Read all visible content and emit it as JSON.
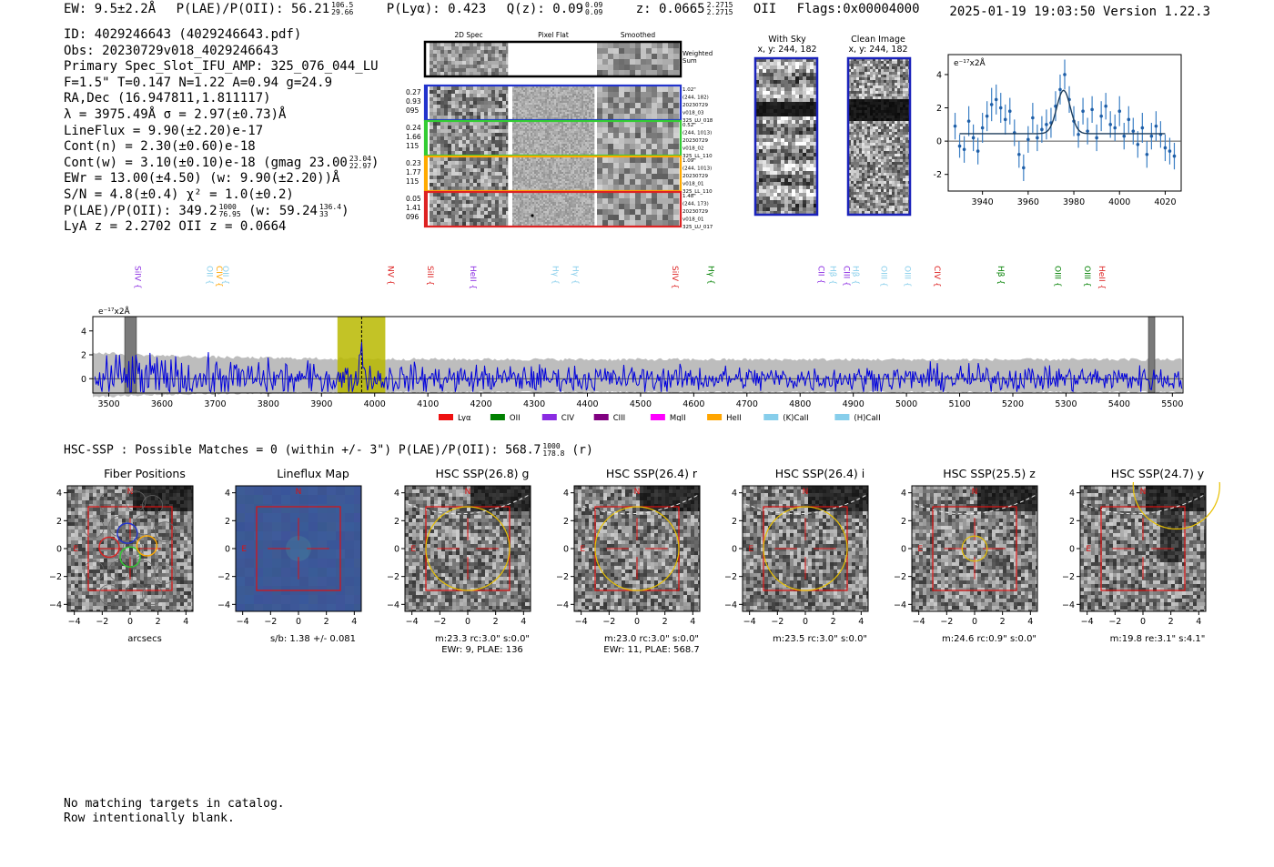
{
  "header": {
    "ew": "EW: 9.5±2.2Å",
    "plae_label": "P(LAE)/P(OII): 56.21",
    "plae_hi": "106.5",
    "plae_lo": "29.66",
    "plya": "P(Lyα): 0.423",
    "q_label": "Q(z): 0.09",
    "q_hi": "0.09",
    "q_lo": "0.09",
    "z_label": "z: 0.0665",
    "z_hi": "2.2715",
    "z_lo": "2.2715",
    "z_line": "OII",
    "flags": "Flags:0x00004000",
    "datestamp": "2025-01-19 19:03:50  Version 1.22.3"
  },
  "info": {
    "id": "ID: 4029246643 (4029246643.pdf)",
    "obs": "Obs: 20230729v018_4029246643",
    "primary": "Primary Spec_Slot_IFU_AMP: 325_076_044_LU",
    "fit": "F=1.5\"  T=0.147  N=1.22  A=0.94  g=24.9",
    "radec": "RA,Dec (16.947811,1.811117)",
    "lambda": "λ = 3975.49Å  σ = 2.97(±0.73)Å",
    "lineflux": "LineFlux = 9.90(±2.20)e-17",
    "contn": "Cont(n) = 2.30(±0.60)e-18",
    "contw": "Cont(w) = 3.10(±0.10)e-18 (gmag 23.00",
    "contw_hi": "23.04",
    "contw_lo": "22.97",
    "contw_end": ")",
    "ewr": "EWr = 13.00(±4.50) (w: 9.90(±2.20))Å",
    "sn": "S/N = 4.8(±0.4)  χ² = 1.0(±0.2)",
    "plae": "P(LAE)/P(OII): 349.2",
    "plae_hi": "1000",
    "plae_lo": "76.95",
    "plae_w": "(w: 59.24",
    "plae_w_hi": "136.4",
    "plae_w_lo": "33",
    "plae_w_end": ")",
    "lya": "LyA z = 2.2702  OII z = 0.0664"
  },
  "spec2d": {
    "headers": [
      "2D Spec",
      "Pixel Flat",
      "Smoothed"
    ],
    "weighted_label": "Weighted Sum",
    "colors": [
      "#000000",
      "#2233cc",
      "#33cc33",
      "#ffaa00",
      "#dd2222"
    ],
    "rows": [
      {
        "stats": [
          "0.27",
          "0.93",
          "095"
        ],
        "meta": [
          "1.02\"",
          "(244, 182)",
          "20230729",
          "v018_03",
          "325_LU_018"
        ],
        "color": "#2233cc"
      },
      {
        "stats": [
          "0.24",
          "1.66",
          "115"
        ],
        "meta": [
          "0.52\"",
          "(244, 1013)",
          "20230729",
          "v018_02",
          "325_LL_110"
        ],
        "color": "#33cc33"
      },
      {
        "stats": [
          "0.23",
          "1.77",
          "115"
        ],
        "meta": [
          "1.09\"",
          "(244, 1013)",
          "20230729",
          "v018_01",
          "325_LL_110"
        ],
        "color": "#ffaa00"
      },
      {
        "stats": [
          "0.05",
          "1.41",
          "096"
        ],
        "meta": [
          "1.48\"",
          "(244, 173)",
          "20230729",
          "v018_01",
          "325_LU_017"
        ],
        "color": "#dd2222"
      }
    ]
  },
  "sky_panels": [
    {
      "title": "With Sky",
      "coords": "x, y: 244, 182"
    },
    {
      "title": "Clean Image",
      "coords": "x, y: 244, 182"
    }
  ],
  "zoom_plot": {
    "unit": "e⁻¹⁷x2Å",
    "xlim": [
      3925,
      4027
    ],
    "ylim": [
      -3,
      5.2
    ],
    "xticks": [
      3940,
      3960,
      3980,
      4000,
      4020
    ],
    "yticks": [
      -2,
      0,
      2,
      4
    ],
    "points": [
      {
        "x": 3928,
        "y": 0.9,
        "e": 0.8
      },
      {
        "x": 3930,
        "y": -0.3,
        "e": 0.7
      },
      {
        "x": 3932,
        "y": -0.5,
        "e": 0.8
      },
      {
        "x": 3934,
        "y": 1.2,
        "e": 0.9
      },
      {
        "x": 3936,
        "y": 0.2,
        "e": 0.8
      },
      {
        "x": 3938,
        "y": -0.6,
        "e": 0.8
      },
      {
        "x": 3940,
        "y": 0.8,
        "e": 0.9
      },
      {
        "x": 3942,
        "y": 1.5,
        "e": 0.9
      },
      {
        "x": 3944,
        "y": 2.2,
        "e": 1.0
      },
      {
        "x": 3946,
        "y": 2.5,
        "e": 0.9
      },
      {
        "x": 3948,
        "y": 2.0,
        "e": 0.9
      },
      {
        "x": 3950,
        "y": 1.3,
        "e": 0.9
      },
      {
        "x": 3952,
        "y": 1.8,
        "e": 0.8
      },
      {
        "x": 3954,
        "y": 0.5,
        "e": 0.8
      },
      {
        "x": 3956,
        "y": -0.8,
        "e": 0.8
      },
      {
        "x": 3958,
        "y": -1.6,
        "e": 0.8
      },
      {
        "x": 3960,
        "y": 0.1,
        "e": 0.8
      },
      {
        "x": 3962,
        "y": 1.4,
        "e": 0.9
      },
      {
        "x": 3964,
        "y": 0.2,
        "e": 0.8
      },
      {
        "x": 3966,
        "y": 0.7,
        "e": 0.8
      },
      {
        "x": 3968,
        "y": 1.0,
        "e": 0.9
      },
      {
        "x": 3970,
        "y": 1.1,
        "e": 0.9
      },
      {
        "x": 3972,
        "y": 2.1,
        "e": 0.9
      },
      {
        "x": 3974,
        "y": 3.1,
        "e": 0.9
      },
      {
        "x": 3976,
        "y": 4.0,
        "e": 0.9
      },
      {
        "x": 3978,
        "y": 2.5,
        "e": 0.8
      },
      {
        "x": 3980,
        "y": 1.2,
        "e": 0.9
      },
      {
        "x": 3982,
        "y": 0.4,
        "e": 0.8
      },
      {
        "x": 3984,
        "y": 1.8,
        "e": 0.8
      },
      {
        "x": 3986,
        "y": 0.6,
        "e": 0.8
      },
      {
        "x": 3988,
        "y": 1.9,
        "e": 0.8
      },
      {
        "x": 3990,
        "y": 0.2,
        "e": 0.8
      },
      {
        "x": 3992,
        "y": 1.5,
        "e": 0.9
      },
      {
        "x": 3994,
        "y": 2.1,
        "e": 0.8
      },
      {
        "x": 3996,
        "y": 1.0,
        "e": 0.8
      },
      {
        "x": 3998,
        "y": 0.8,
        "e": 0.8
      },
      {
        "x": 4000,
        "y": 1.8,
        "e": 0.9
      },
      {
        "x": 4002,
        "y": 0.3,
        "e": 0.8
      },
      {
        "x": 4004,
        "y": 1.3,
        "e": 0.8
      },
      {
        "x": 4006,
        "y": 0.6,
        "e": 0.8
      },
      {
        "x": 4008,
        "y": -0.2,
        "e": 0.8
      },
      {
        "x": 4010,
        "y": 0.8,
        "e": 0.9
      },
      {
        "x": 4012,
        "y": -0.8,
        "e": 0.8
      },
      {
        "x": 4014,
        "y": 0.3,
        "e": 0.8
      },
      {
        "x": 4016,
        "y": 0.9,
        "e": 0.9
      },
      {
        "x": 4018,
        "y": 0.4,
        "e": 0.8
      },
      {
        "x": 4020,
        "y": -0.4,
        "e": 0.8
      },
      {
        "x": 4022,
        "y": -0.6,
        "e": 0.8
      },
      {
        "x": 4024,
        "y": -0.9,
        "e": 0.8
      }
    ],
    "fit": {
      "center": 3975.5,
      "sigma": 2.97,
      "amp": 2.6,
      "cont": 0.45,
      "start": 3930,
      "end": 4020
    }
  },
  "full_spec": {
    "unit": "e⁻¹⁷x2Å",
    "xlim": [
      3470,
      5520
    ],
    "ylim": [
      -1.2,
      5.2
    ],
    "xticks": [
      3500,
      3600,
      3700,
      3800,
      3900,
      4000,
      4100,
      4200,
      4300,
      4400,
      4500,
      4600,
      4700,
      4800,
      4900,
      5000,
      5100,
      5200,
      5300,
      5400,
      5500
    ],
    "yticks": [
      0,
      2,
      4
    ],
    "highlight": [
      3930,
      4020
    ],
    "line_center": 3975.5,
    "masked": [
      [
        3530,
        3552
      ],
      [
        5455,
        5467
      ]
    ],
    "lines": [
      {
        "label": "SiIV",
        "x": 3555,
        "color": "#8a2be2",
        "row": 1
      },
      {
        "label": "OII",
        "x": 3690,
        "color": "#87ceeb",
        "row": 1
      },
      {
        "label": "CIV",
        "x": 3708,
        "color": "#ffa500",
        "row": 1
      },
      {
        "label": "OII",
        "x": 3720,
        "color": "#87ceeb",
        "row": 1
      },
      {
        "label": "NV",
        "x": 4030,
        "color": "#dd2222",
        "row": 1
      },
      {
        "label": "SiII",
        "x": 4105,
        "color": "#dd2222",
        "row": 1
      },
      {
        "label": "HeII",
        "x": 4185,
        "color": "#8a2be2",
        "row": 1
      },
      {
        "label": "Hγ",
        "x": 4340,
        "color": "#87ceeb",
        "row": 1
      },
      {
        "label": "Hγ",
        "x": 4378,
        "color": "#87ceeb",
        "row": 1
      },
      {
        "label": "SiIV",
        "x": 4565,
        "color": "#dd2222",
        "row": 1
      },
      {
        "label": "CIII",
        "x": 4630,
        "color": "#ffa500",
        "row": 0
      },
      {
        "label": "Hγ",
        "x": 4633,
        "color": "#008000",
        "row": 1
      },
      {
        "label": "CII",
        "x": 4840,
        "color": "#8a2be2",
        "row": 1
      },
      {
        "label": "Hβ",
        "x": 4862,
        "color": "#87ceeb",
        "row": 1
      },
      {
        "label": "CIII",
        "x": 4888,
        "color": "#8a2be2",
        "row": 1
      },
      {
        "label": "Hβ",
        "x": 4905,
        "color": "#87ceeb",
        "row": 1
      },
      {
        "label": "OIII",
        "x": 4958,
        "color": "#87ceeb",
        "row": 1
      },
      {
        "label": "OIII",
        "x": 5007,
        "color": "#87ceeb",
        "row": 0
      },
      {
        "label": "OIII",
        "x": 5002,
        "color": "#87ceeb",
        "row": 1
      },
      {
        "label": "OII",
        "x": 5050,
        "color": "#87ceeb",
        "row": 0
      },
      {
        "label": "CIV",
        "x": 5058,
        "color": "#dd2222",
        "row": 1
      },
      {
        "label": "Hβ",
        "x": 5178,
        "color": "#008000",
        "row": 1
      },
      {
        "label": "OII",
        "x": 5290,
        "color": "#ff00ff",
        "row": 0
      },
      {
        "label": "OIII",
        "x": 5285,
        "color": "#008000",
        "row": 1
      },
      {
        "label": "OIII",
        "x": 5340,
        "color": "#008000",
        "row": 1
      },
      {
        "label": "HeII",
        "x": 5368,
        "color": "#dd2222",
        "row": 1
      }
    ],
    "legend": [
      {
        "label": "Lyα",
        "color": "#ee1111"
      },
      {
        "label": "OII",
        "color": "#008000"
      },
      {
        "label": "CIV",
        "color": "#8a2be2"
      },
      {
        "label": "CIII",
        "color": "#800080"
      },
      {
        "label": "MgII",
        "color": "#ff00ff"
      },
      {
        "label": "HeII",
        "color": "#ffa500"
      },
      {
        "label": "(K)CaII",
        "color": "#87ceeb"
      },
      {
        "label": "(H)CaII",
        "color": "#87ceeb"
      }
    ]
  },
  "hsc": {
    "title": "HSC-SSP : Possible Matches = 0 (within +/- 3\")  P(LAE)/P(OII): 568.7",
    "title_hi": "1000",
    "title_lo": "178.8",
    "title_end": "(r)",
    "axis_ticks": [
      -4,
      -2,
      0,
      2,
      4
    ],
    "north_label": "N",
    "east_label": "E",
    "panels": [
      {
        "title": "Fiber Positions",
        "caption": [
          "arcsecs"
        ],
        "kind": "fibers"
      },
      {
        "title": "Lineflux Map",
        "caption": [
          "s/b: 1.38 +/- 0.081"
        ],
        "kind": "lineflux"
      },
      {
        "title": "HSC SSP(26.8) g",
        "caption": [
          "m:23.3 rc:3.0\"  s:0.0\"",
          "EWr: 9, PLAE: 136"
        ],
        "kind": "hsc",
        "aperture": 3.0
      },
      {
        "title": "HSC SSP(26.4) r",
        "caption": [
          "m:23.0 rc:3.0\"  s:0.0\"",
          "EWr: 11, PLAE: 568.7"
        ],
        "kind": "hsc",
        "aperture": 3.0
      },
      {
        "title": "HSC SSP(26.4) i",
        "caption": [
          "m:23.5 rc:3.0\"  s:0.0\""
        ],
        "kind": "hsc",
        "aperture": 3.0
      },
      {
        "title": "HSC SSP(25.5) z",
        "caption": [
          "m:24.6 rc:0.9\"  s:0.0\""
        ],
        "kind": "hsc",
        "aperture": 0.9
      },
      {
        "title": "HSC SSP(24.7) y",
        "caption": [
          "m:19.8  re:3.1\"  s:4.1\""
        ],
        "kind": "hsc_y",
        "aperture": 3.1
      }
    ]
  },
  "footer": {
    "line1": "No matching targets in catalog.",
    "line2": "Row intentionally blank."
  }
}
